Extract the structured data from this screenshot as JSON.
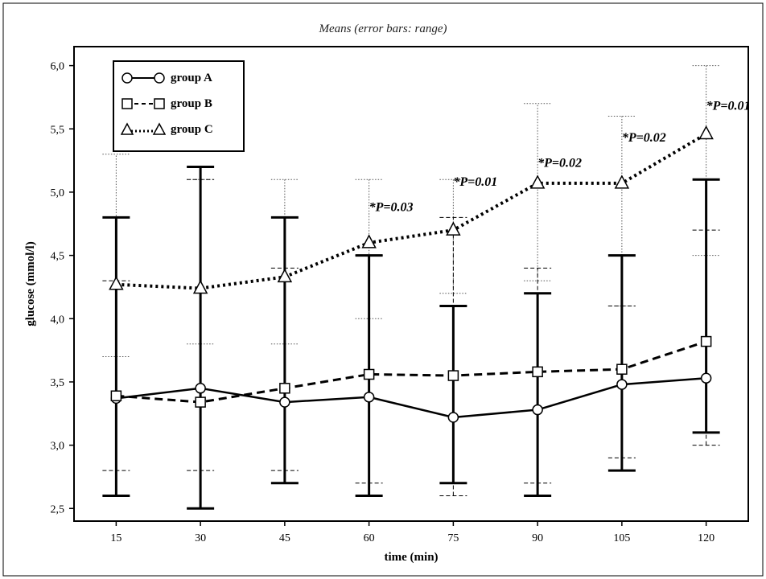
{
  "chart_data": {
    "type": "line",
    "title": "Means  (error bars: range)",
    "xlabel": "time (min)",
    "ylabel": "glucose (mmol/l)",
    "x": [
      15,
      30,
      45,
      60,
      75,
      90,
      105,
      120
    ],
    "x_tick_labels": [
      "15",
      "30",
      "45",
      "60",
      "75",
      "90",
      "105",
      "120"
    ],
    "ylim": [
      2.5,
      6.0
    ],
    "y_ticks": [
      2.5,
      3.0,
      3.5,
      4.0,
      4.5,
      5.0,
      5.5,
      6.0
    ],
    "y_tick_labels": [
      "2,5",
      "3,0",
      "3,5",
      "4,0",
      "4,5",
      "5,0",
      "5,5",
      "6,0"
    ],
    "legend_position": "top-left",
    "grid": false,
    "series": [
      {
        "name": "group A",
        "marker": "circle",
        "line_style": "solid",
        "values": [
          3.37,
          3.45,
          3.34,
          3.38,
          3.22,
          3.28,
          3.48,
          3.53
        ],
        "range_low": [
          2.6,
          2.5,
          2.7,
          2.6,
          2.7,
          2.6,
          2.8,
          3.1
        ],
        "range_high": [
          4.8,
          5.2,
          4.8,
          4.5,
          4.1,
          4.2,
          4.5,
          5.1
        ]
      },
      {
        "name": "group B",
        "marker": "square",
        "line_style": "dashed",
        "values": [
          3.39,
          3.34,
          3.45,
          3.56,
          3.55,
          3.58,
          3.6,
          3.82
        ],
        "range_low": [
          2.8,
          2.8,
          2.8,
          2.7,
          2.6,
          2.7,
          2.9,
          3.0
        ],
        "range_high": [
          4.3,
          5.1,
          4.4,
          4.5,
          4.8,
          4.4,
          4.1,
          4.7
        ]
      },
      {
        "name": "group C",
        "marker": "triangle",
        "line_style": "dotted",
        "values": [
          4.27,
          4.24,
          4.33,
          4.6,
          4.7,
          5.07,
          5.07,
          5.46
        ],
        "range_low": [
          3.7,
          3.8,
          3.8,
          4.0,
          4.2,
          4.3,
          4.1,
          4.5
        ],
        "range_high": [
          5.3,
          5.1,
          5.1,
          5.1,
          5.1,
          5.7,
          5.6,
          6.0
        ]
      }
    ],
    "annotations": [
      {
        "x": 60,
        "y": 4.85,
        "text": "*P=0.03"
      },
      {
        "x": 75,
        "y": 5.05,
        "text": "*P=0.01"
      },
      {
        "x": 90,
        "y": 5.2,
        "text": "*P=0.02"
      },
      {
        "x": 105,
        "y": 5.4,
        "text": "*P=0.02"
      },
      {
        "x": 120,
        "y": 5.65,
        "text": "*P=0.01"
      }
    ]
  }
}
